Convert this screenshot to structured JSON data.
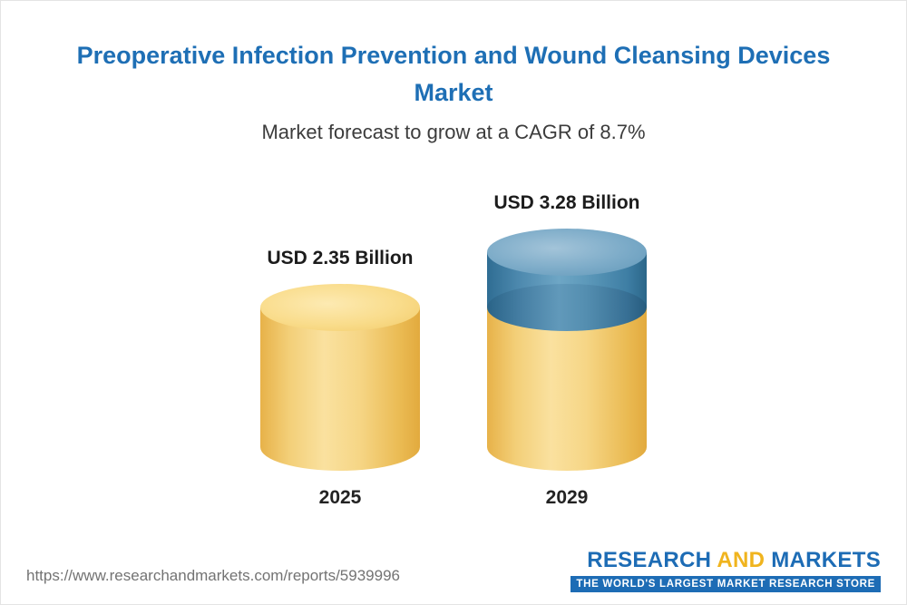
{
  "title": "Preoperative Infection Prevention and Wound Cleansing Devices Market",
  "subtitle": "Market forecast to grow at a CAGR of 8.7%",
  "chart_data": {
    "type": "bar",
    "title": "Preoperative Infection Prevention and Wound Cleansing Devices Market",
    "subtitle": "Market forecast to grow at a CAGR of 8.7%",
    "cagr": "8.7%",
    "unit": "USD Billion",
    "categories": [
      "2025",
      "2029"
    ],
    "values": [
      2.35,
      3.28
    ],
    "value_labels": [
      "USD 2.35 Billion",
      "USD 3.28 Billion"
    ],
    "ylim": [
      0,
      3.28
    ],
    "grid": false,
    "legend": false,
    "bar_style": "3d-cylinder",
    "note": "2029 cylinder shows the growth increment (3.28 - 2.35) as a blue top segment over the gold base"
  },
  "colors": {
    "title_blue": "#1e6fb5",
    "bar_gold": "#f3cf78",
    "bar_blue": "#4d89ae",
    "logo_blue": "#1d6cb5",
    "logo_gold": "#f0b41e"
  },
  "footer": {
    "url": "https://www.researchandmarkets.com/reports/5939996",
    "logo": {
      "research": "RESEARCH",
      "and": "AND",
      "markets": "MARKETS",
      "tagline": "THE WORLD'S LARGEST MARKET RESEARCH STORE"
    }
  }
}
